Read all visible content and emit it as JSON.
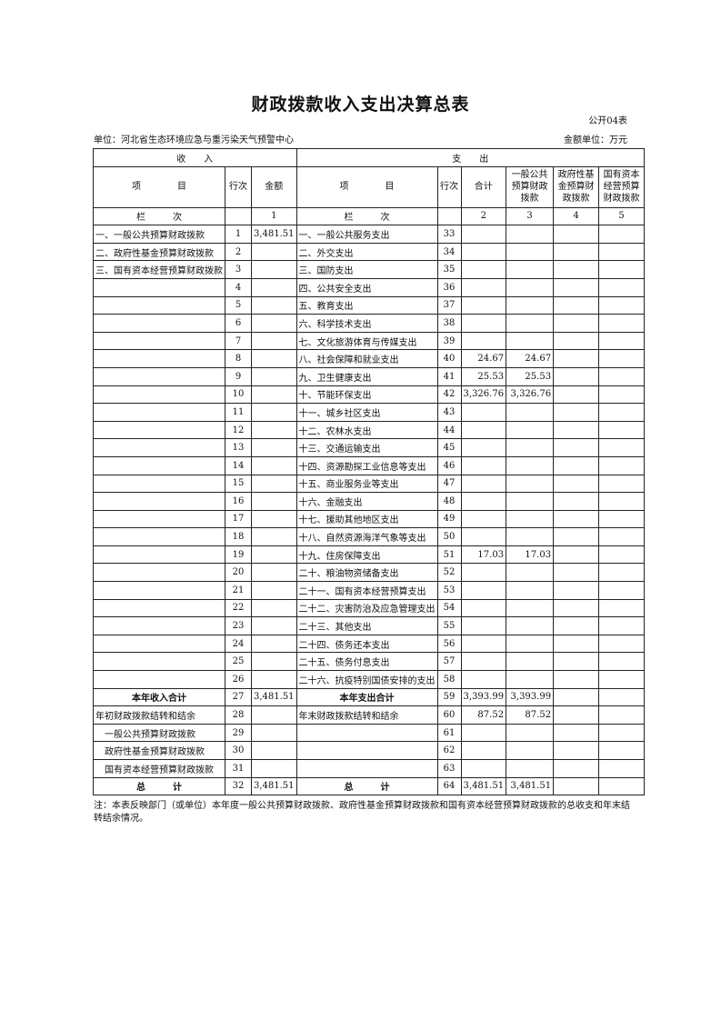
{
  "title": "财政拨款收入支出决算总表",
  "form_code": "公开04表",
  "unit": "单位：河北省生态环境应急与重污染天气预警中心",
  "money_unit": "金额单位：万元",
  "header": {
    "income": "收　　入",
    "expense": "支　　出",
    "item": "项　　　　目",
    "line": "行次",
    "amount": "金额",
    "total": "合计",
    "general": "一般公共预算财政拨款",
    "gov_fund": "政府性基金预算财政拨款",
    "state_capital": "国有资本经营预算财政拨款",
    "col_label": "栏　　　次",
    "c1": "1",
    "c2": "2",
    "c3": "3",
    "c4": "4",
    "c5": "5"
  },
  "rows": [
    [
      "一、一般公共预算财政拨款",
      "1",
      "3,481.51",
      "一、一般公共服务支出",
      "33",
      "",
      "",
      "",
      ""
    ],
    [
      "二、政府性基金预算财政拨款",
      "2",
      "",
      "二、外交支出",
      "34",
      "",
      "",
      "",
      ""
    ],
    [
      "三、国有资本经营预算财政拨款",
      "3",
      "",
      "三、国防支出",
      "35",
      "",
      "",
      "",
      ""
    ],
    [
      "",
      "4",
      "",
      "四、公共安全支出",
      "36",
      "",
      "",
      "",
      ""
    ],
    [
      "",
      "5",
      "",
      "五、教育支出",
      "37",
      "",
      "",
      "",
      ""
    ],
    [
      "",
      "6",
      "",
      "六、科学技术支出",
      "38",
      "",
      "",
      "",
      ""
    ],
    [
      "",
      "7",
      "",
      "七、文化旅游体育与传媒支出",
      "39",
      "",
      "",
      "",
      ""
    ],
    [
      "",
      "8",
      "",
      "八、社会保障和就业支出",
      "40",
      "24.67",
      "24.67",
      "",
      ""
    ],
    [
      "",
      "9",
      "",
      "九、卫生健康支出",
      "41",
      "25.53",
      "25.53",
      "",
      ""
    ],
    [
      "",
      "10",
      "",
      "十、节能环保支出",
      "42",
      "3,326.76",
      "3,326.76",
      "",
      ""
    ],
    [
      "",
      "11",
      "",
      "十一、城乡社区支出",
      "43",
      "",
      "",
      "",
      ""
    ],
    [
      "",
      "12",
      "",
      "十二、农林水支出",
      "44",
      "",
      "",
      "",
      ""
    ],
    [
      "",
      "13",
      "",
      "十三、交通运输支出",
      "45",
      "",
      "",
      "",
      ""
    ],
    [
      "",
      "14",
      "",
      "十四、资源勘探工业信息等支出",
      "46",
      "",
      "",
      "",
      ""
    ],
    [
      "",
      "15",
      "",
      "十五、商业服务业等支出",
      "47",
      "",
      "",
      "",
      ""
    ],
    [
      "",
      "16",
      "",
      "十六、金融支出",
      "48",
      "",
      "",
      "",
      ""
    ],
    [
      "",
      "17",
      "",
      "十七、援助其他地区支出",
      "49",
      "",
      "",
      "",
      ""
    ],
    [
      "",
      "18",
      "",
      "十八、自然资源海洋气象等支出",
      "50",
      "",
      "",
      "",
      ""
    ],
    [
      "",
      "19",
      "",
      "十九、住房保障支出",
      "51",
      "17.03",
      "17.03",
      "",
      ""
    ],
    [
      "",
      "20",
      "",
      "二十、粮油物资储备支出",
      "52",
      "",
      "",
      "",
      ""
    ],
    [
      "",
      "21",
      "",
      "二十一、国有资本经营预算支出",
      "53",
      "",
      "",
      "",
      ""
    ],
    [
      "",
      "22",
      "",
      "二十二、灾害防治及应急管理支出",
      "54",
      "",
      "",
      "",
      ""
    ],
    [
      "",
      "23",
      "",
      "二十三、其他支出",
      "55",
      "",
      "",
      "",
      ""
    ],
    [
      "",
      "24",
      "",
      "二十四、债务还本支出",
      "56",
      "",
      "",
      "",
      ""
    ],
    [
      "",
      "25",
      "",
      "二十五、债务付息支出",
      "57",
      "",
      "",
      "",
      ""
    ],
    [
      "",
      "26",
      "",
      "二十六、抗疫特别国债安排的支出",
      "58",
      "",
      "",
      "",
      ""
    ],
    [
      "本年收入合计",
      "27",
      "3,481.51",
      "本年支出合计",
      "59",
      "3,393.99",
      "3,393.99",
      "",
      ""
    ],
    [
      "年初财政拨款结转和结余",
      "28",
      "",
      "年末财政拨款结转和结余",
      "60",
      "87.52",
      "87.52",
      "",
      ""
    ],
    [
      "　一般公共预算财政拨款",
      "29",
      "",
      "",
      "61",
      "",
      "",
      "",
      ""
    ],
    [
      "　政府性基金预算财政拨款",
      "30",
      "",
      "",
      "62",
      "",
      "",
      "",
      ""
    ],
    [
      "　国有资本经营预算财政拨款",
      "31",
      "",
      "",
      "63",
      "",
      "",
      "",
      ""
    ],
    [
      "总　　　计",
      "32",
      "3,481.51",
      "总　　　计",
      "64",
      "3,481.51",
      "3,481.51",
      "",
      ""
    ]
  ],
  "note": "注：本表反映部门（或单位）本年度一般公共预算财政拨款、政府性基金预算财政拨款和国有资本经营预算财政拨款的总收支和年末结转结余情况。"
}
